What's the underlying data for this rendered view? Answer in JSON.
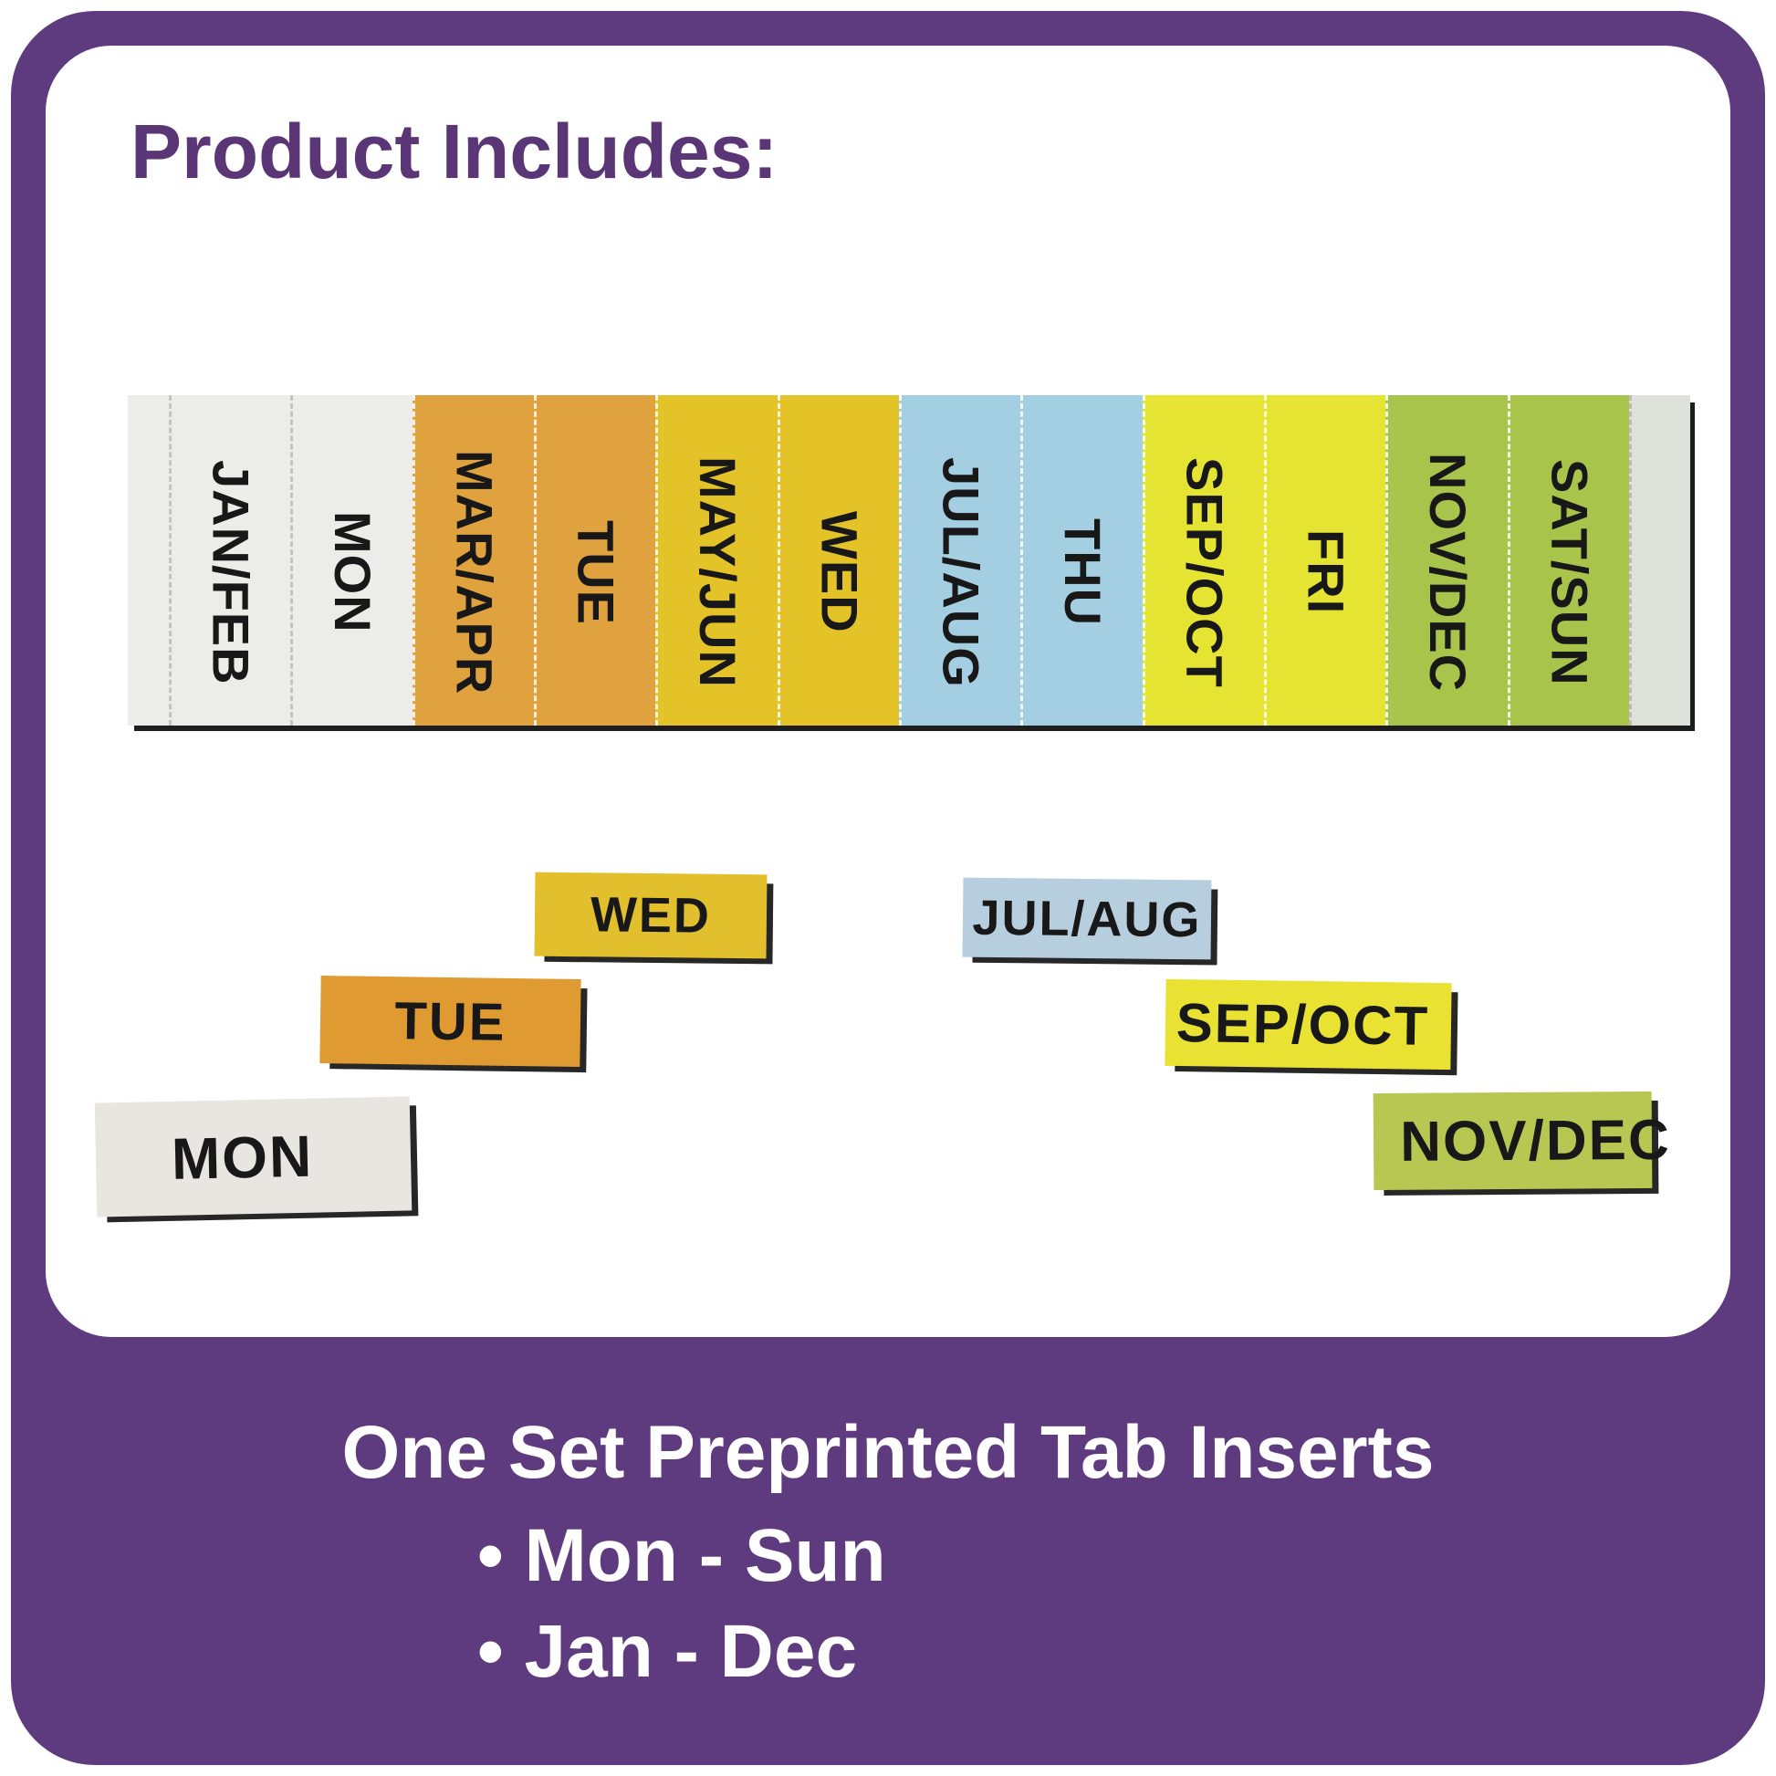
{
  "title": "Product Includes:",
  "strip": {
    "segments": [
      {
        "label": "",
        "color": "white",
        "kind": "stub"
      },
      {
        "label": "JAN/FEB",
        "color": "white",
        "kind": "tab"
      },
      {
        "label": "MON",
        "color": "white",
        "kind": "tab"
      },
      {
        "label": "MAR/APR",
        "color": "orange",
        "kind": "tab"
      },
      {
        "label": "TUE",
        "color": "orange",
        "kind": "tab"
      },
      {
        "label": "MAY/JUN",
        "color": "gold",
        "kind": "tab"
      },
      {
        "label": "WED",
        "color": "gold",
        "kind": "tab"
      },
      {
        "label": "JUL/AUG",
        "color": "blue",
        "kind": "tab"
      },
      {
        "label": "THU",
        "color": "blue",
        "kind": "tab"
      },
      {
        "label": "SEP/OCT",
        "color": "yellow",
        "kind": "tab"
      },
      {
        "label": "FRI",
        "color": "yellow",
        "kind": "tab"
      },
      {
        "label": "NOV/DEC",
        "color": "green",
        "kind": "tab"
      },
      {
        "label": "SAT/SUN",
        "color": "green",
        "kind": "tab"
      },
      {
        "label": "",
        "color": "sliver",
        "kind": "end"
      }
    ]
  },
  "loose_tabs": [
    {
      "label": "WED",
      "color": "gold"
    },
    {
      "label": "TUE",
      "color": "orange"
    },
    {
      "label": "MON",
      "color": "white"
    },
    {
      "label": "JUL/AUG",
      "color": "blue"
    },
    {
      "label": "SEP/OCT",
      "color": "yellow"
    },
    {
      "label": "NOV/DEC",
      "color": "green"
    }
  ],
  "footer": {
    "heading": "One Set Preprinted Tab Inserts",
    "bullets": [
      "• Mon - Sun",
      "• Jan - Dec"
    ]
  },
  "colors": {
    "frame_purple": "#5e3a7e",
    "title_purple": "#5b3677",
    "ink": "#181818",
    "footer_text": "#ffffff",
    "tab_white": "#ecede8",
    "tab_orange": "#e0a23f",
    "tab_gold": "#e3c327",
    "tab_blue": "#a4cee1",
    "tab_yellow": "#e6e432",
    "tab_green": "#a9c44b",
    "end_sliver": "#dfe2db",
    "loose_white": "#e9e5e1",
    "loose_orange": "#df9b32",
    "loose_gold": "#e2bf2d",
    "loose_blue": "#b7cede",
    "loose_yellow": "#e9e233",
    "loose_green": "#b8c752"
  }
}
